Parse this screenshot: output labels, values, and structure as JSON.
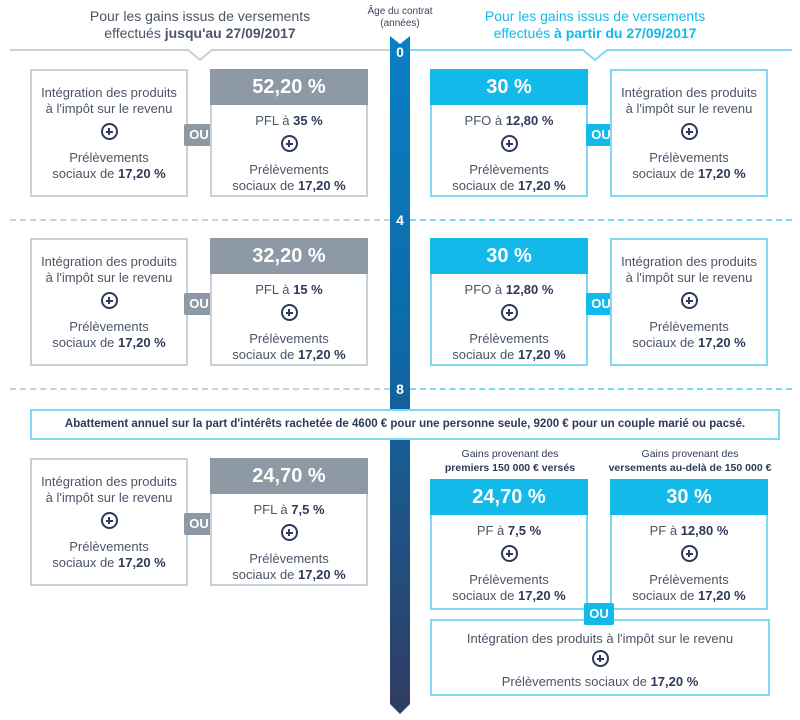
{
  "header": {
    "left_line1": "Pour les gains issus de versements",
    "left_line2_pre": "effectués ",
    "left_line2_bold": "jusqu'au 27/09/2017",
    "axis_line1": "Âge du contrat",
    "axis_line2": "(années)",
    "right_line1": "Pour les gains issus de versements",
    "right_line2_pre": "effectués ",
    "right_line2_bold": "à partir du 27/09/2017"
  },
  "timeline": {
    "marks": [
      "0",
      "4",
      "8"
    ],
    "colors": {
      "top": "#0a7fc4",
      "bottom": "#313b62"
    }
  },
  "colors": {
    "gray": "#8d9aa5",
    "cyan": "#13b9e9"
  },
  "common": {
    "integration_l1": "Intégration des produits",
    "integration_l2": "à l'impôt sur le revenu",
    "prelev_l1": "Prélèvements",
    "prelev_l2_pre": "sociaux de ",
    "prelev_l2_bold": "17,20 %",
    "ou": "OU"
  },
  "rows": [
    {
      "left_total": "52,20 %",
      "left_tax_pre": "PFL à ",
      "left_tax_bold": "35 %",
      "right_total": "30 %",
      "right_tax_pre": "PFO à ",
      "right_tax_bold": "12,80 %"
    },
    {
      "left_total": "32,20 %",
      "left_tax_pre": "PFL à ",
      "left_tax_bold": "15 %",
      "right_total": "30 %",
      "right_tax_pre": "PFO à ",
      "right_tax_bold": "12,80 %"
    },
    {
      "left_total": "24,70 %",
      "left_tax_pre": "PFL à ",
      "left_tax_bold": "7,5 %"
    }
  ],
  "abatement": "Abattement annuel sur la part d'intérêts rachetée de 4600 € pour une personne seule, 9200 € pour un couple marié ou pacsé.",
  "row3_right": {
    "a_label1": "Gains provenant des",
    "a_label2": "premiers 150 000 € versés",
    "a_total": "24,70 %",
    "a_tax_pre": "PF à ",
    "a_tax_bold": "7,5 %",
    "b_label1": "Gains provenant des",
    "b_label2": "versements au-delà de 150 000 €",
    "b_total": "30 %",
    "b_tax_pre": "PF à ",
    "b_tax_bold": "12,80 %",
    "bottom_l1": "Intégration des produits à l'impôt sur le revenu",
    "bottom_l2_pre": "Prélèvements sociaux de ",
    "bottom_l2_bold": "17,20 %"
  }
}
